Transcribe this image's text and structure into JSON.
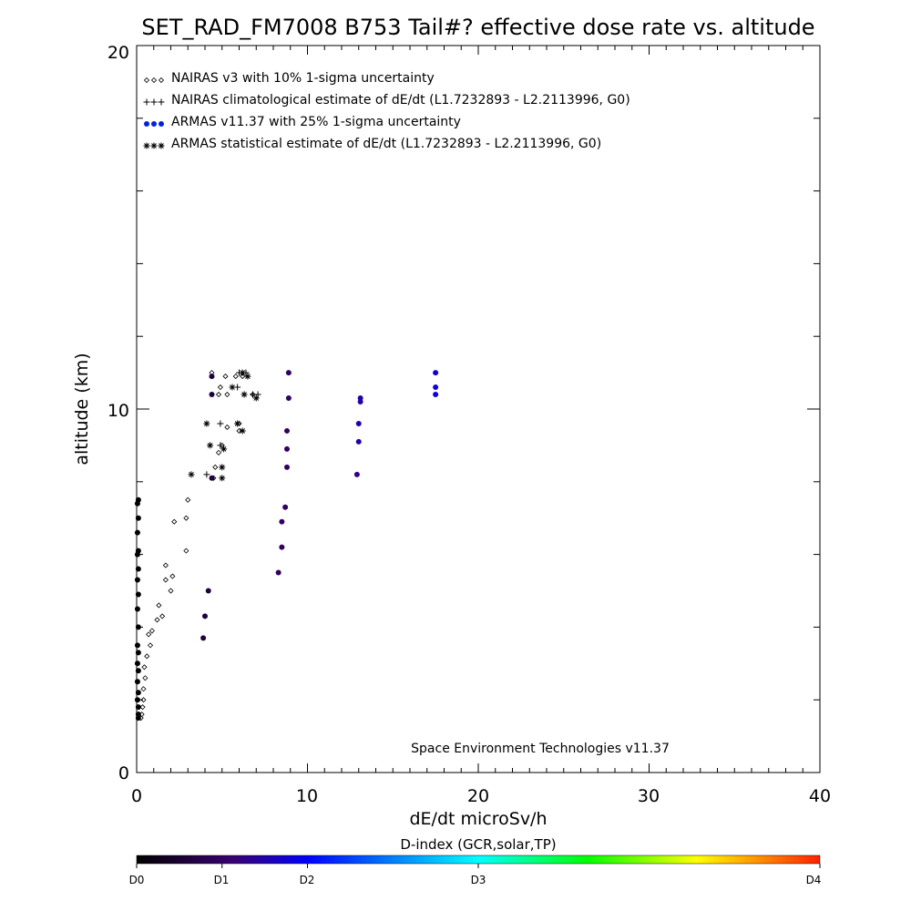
{
  "chart_data": {
    "type": "scatter",
    "title": "SET_RAD_FM7008  B753 Tail#? effective dose rate vs. altitude",
    "xlabel": "dE/dt microSv/h",
    "ylabel": "altitude (km)",
    "xlim": [
      0,
      40
    ],
    "ylim": [
      0,
      20
    ],
    "x_ticks": [
      "0",
      "10",
      "20",
      "30",
      "40"
    ],
    "y_ticks": [
      "0",
      "10",
      "20"
    ],
    "grid": false,
    "legend_position": "top-left",
    "annotation": "Space Environment Technologies v11.37",
    "colorbar": {
      "title": "D-index (GCR,solar,TP)",
      "labels": [
        "D0",
        "D1",
        "D2",
        "D3",
        "D4"
      ],
      "label_positions": [
        0,
        0.125,
        0.25,
        0.5,
        1.0
      ],
      "colors": [
        "#000000",
        "#3a0070",
        "#0000ff",
        "#00ffff",
        "#00ff00",
        "#ffff00",
        "#ff2000"
      ]
    },
    "series": [
      {
        "name": "NAIRAS v3 with 10% 1-sigma uncertainty",
        "marker": "diamond",
        "color": "#000000",
        "points": [
          [
            0.25,
            1.5
          ],
          [
            0.3,
            1.6
          ],
          [
            0.35,
            1.8
          ],
          [
            0.4,
            2.0
          ],
          [
            0.4,
            2.3
          ],
          [
            0.5,
            2.6
          ],
          [
            0.45,
            2.9
          ],
          [
            0.6,
            3.2
          ],
          [
            0.8,
            3.5
          ],
          [
            0.9,
            3.9
          ],
          [
            0.7,
            3.8
          ],
          [
            1.2,
            4.2
          ],
          [
            1.5,
            4.3
          ],
          [
            1.3,
            4.6
          ],
          [
            2.0,
            5.0
          ],
          [
            1.7,
            5.3
          ],
          [
            2.1,
            5.4
          ],
          [
            1.7,
            5.7
          ],
          [
            2.9,
            6.1
          ],
          [
            2.2,
            6.9
          ],
          [
            2.9,
            7.0
          ],
          [
            3.0,
            7.5
          ],
          [
            4.5,
            8.1
          ],
          [
            4.6,
            8.4
          ],
          [
            4.8,
            8.8
          ],
          [
            5.0,
            9.0
          ],
          [
            5.3,
            9.5
          ],
          [
            6.0,
            9.4
          ],
          [
            6.0,
            9.6
          ],
          [
            4.8,
            10.4
          ],
          [
            5.3,
            10.4
          ],
          [
            4.9,
            10.6
          ],
          [
            5.2,
            10.9
          ],
          [
            5.8,
            10.9
          ],
          [
            6.2,
            10.9
          ],
          [
            6.8,
            10.4
          ],
          [
            4.4,
            11.0
          ]
        ]
      },
      {
        "name": "NAIRAS climatological estimate of dE/dt (L1.7232893 - L2.2113996, G0)",
        "marker": "plus",
        "color": "#000000",
        "points": [
          [
            4.1,
            8.2
          ],
          [
            4.9,
            9.0
          ],
          [
            4.9,
            9.6
          ],
          [
            5.9,
            10.6
          ],
          [
            6.0,
            11.0
          ],
          [
            6.4,
            11.0
          ],
          [
            6.8,
            10.4
          ],
          [
            7.1,
            10.4
          ]
        ]
      },
      {
        "name": "ARMAS v11.37 with 25% 1-sigma uncertainty",
        "marker": "circle",
        "points": [
          [
            0.1,
            1.5
          ],
          [
            0.1,
            1.6
          ],
          [
            0.1,
            1.8
          ],
          [
            0.05,
            2.0
          ],
          [
            0.1,
            2.2
          ],
          [
            0.05,
            2.5
          ],
          [
            0.1,
            2.8
          ],
          [
            0.05,
            3.0
          ],
          [
            0.1,
            3.3
          ],
          [
            0.05,
            3.5
          ],
          [
            0.1,
            4.0
          ],
          [
            0.05,
            4.5
          ],
          [
            0.1,
            4.9
          ],
          [
            0.05,
            5.3
          ],
          [
            0.1,
            5.6
          ],
          [
            0.05,
            6.0
          ],
          [
            0.1,
            6.1
          ],
          [
            0.05,
            6.6
          ],
          [
            0.1,
            7.0
          ],
          [
            0.05,
            7.4
          ],
          [
            0.1,
            7.5
          ],
          [
            3.9,
            3.7
          ],
          [
            4.0,
            4.3
          ],
          [
            4.2,
            5.0
          ],
          [
            4.4,
            8.1
          ],
          [
            4.4,
            10.4
          ],
          [
            4.4,
            10.9
          ],
          [
            8.3,
            5.5
          ],
          [
            8.5,
            6.2
          ],
          [
            8.5,
            6.9
          ],
          [
            8.7,
            7.3
          ],
          [
            8.8,
            8.4
          ],
          [
            8.8,
            8.9
          ],
          [
            8.8,
            9.4
          ],
          [
            8.9,
            10.3
          ],
          [
            8.9,
            11.0
          ],
          [
            12.9,
            8.2
          ],
          [
            13.0,
            9.1
          ],
          [
            13.0,
            9.6
          ],
          [
            13.1,
            10.2
          ],
          [
            13.1,
            10.3
          ],
          [
            17.5,
            10.4
          ],
          [
            17.5,
            10.6
          ],
          [
            17.5,
            11.0
          ]
        ],
        "d_index": [
          0,
          0,
          0,
          0,
          0,
          0,
          0,
          0,
          0,
          0,
          0,
          0,
          0,
          0,
          0,
          0,
          0,
          0,
          0,
          0,
          0,
          0.08,
          0.08,
          0.08,
          0.08,
          0.08,
          0.08,
          0.12,
          0.12,
          0.12,
          0.12,
          0.12,
          0.12,
          0.12,
          0.12,
          0.12,
          0.16,
          0.18,
          0.18,
          0.18,
          0.18,
          0.22,
          0.22,
          0.22
        ]
      },
      {
        "name": "ARMAS statistical estimate of dE/dt (L1.7232893 - L2.2113996, G0)",
        "marker": "asterisk",
        "color": "#000000",
        "points": [
          [
            4.1,
            9.6
          ],
          [
            4.3,
            9.0
          ],
          [
            3.2,
            8.2
          ],
          [
            5.0,
            8.4
          ],
          [
            5.0,
            8.1
          ],
          [
            5.1,
            8.9
          ],
          [
            5.6,
            10.6
          ],
          [
            5.9,
            9.6
          ],
          [
            6.2,
            9.4
          ],
          [
            6.5,
            10.9
          ],
          [
            6.3,
            10.4
          ],
          [
            7.0,
            10.3
          ],
          [
            6.2,
            11.0
          ]
        ]
      }
    ]
  }
}
